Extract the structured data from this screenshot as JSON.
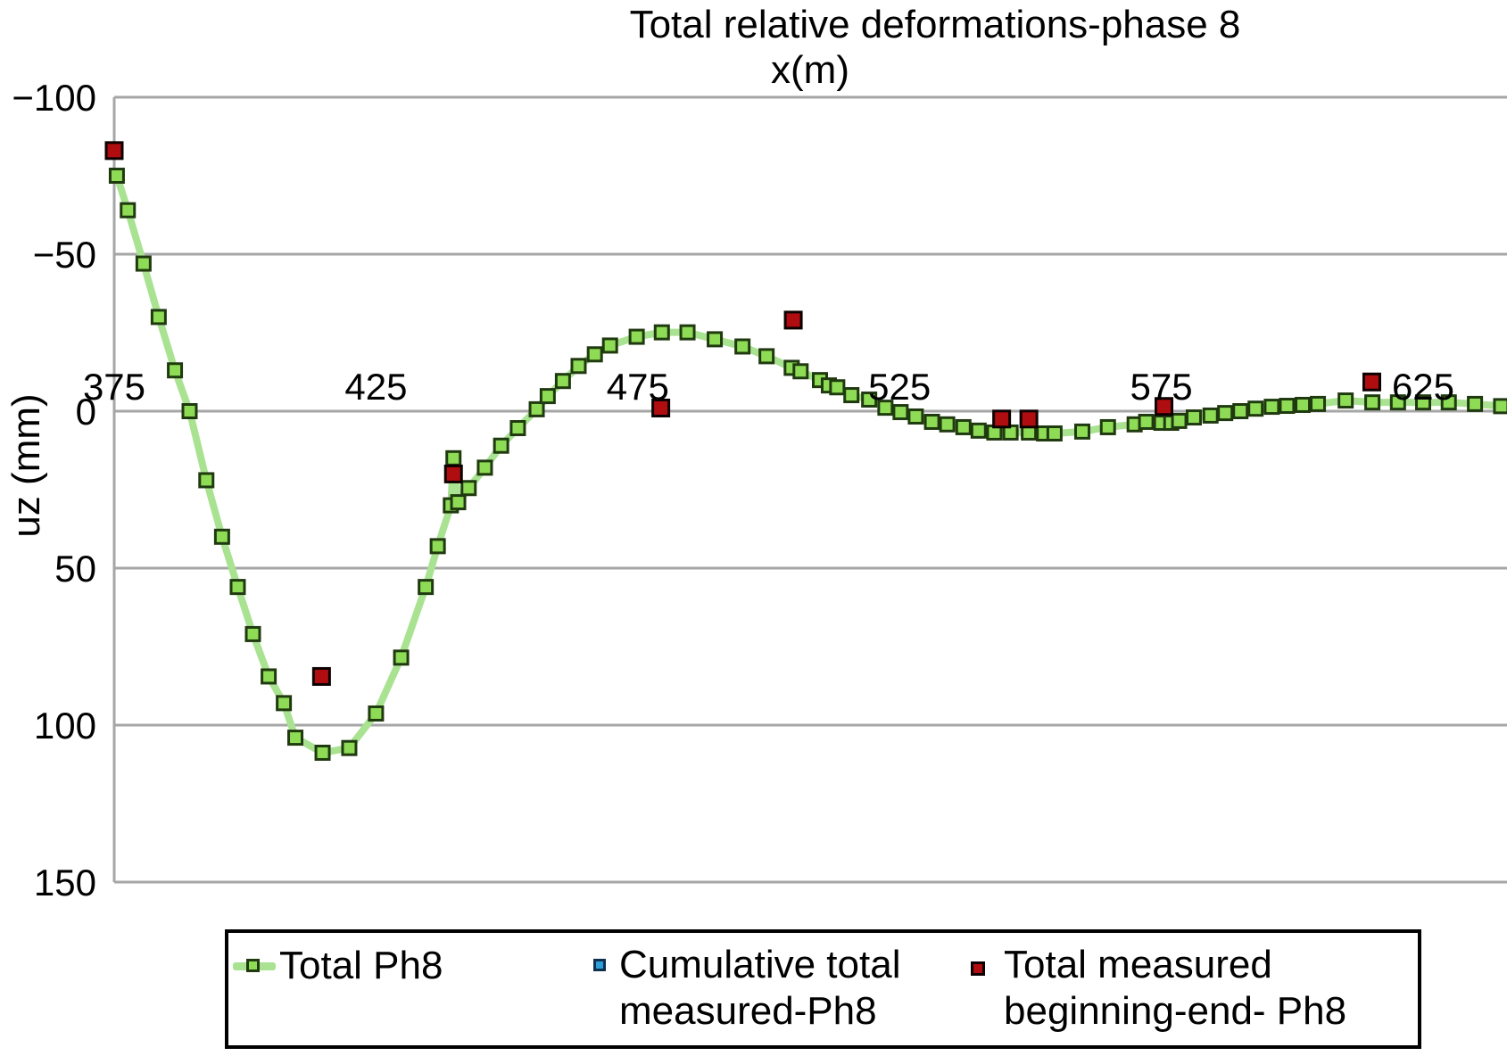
{
  "page": {
    "background": "#ffffff"
  },
  "chart_data": {
    "type": "line",
    "title": "Total relative deformations-phase 8",
    "xlabel": "x(m)",
    "ylabel": "uz (mm)",
    "x_ticks": [
      "375",
      "425",
      "475",
      "525",
      "575",
      "625"
    ],
    "x_tick_values": [
      375,
      425,
      475,
      525,
      575,
      625
    ],
    "y_ticks": [
      "−100",
      "−50",
      "0",
      "50",
      "100",
      "150"
    ],
    "y_tick_values": [
      -100,
      -50,
      0,
      50,
      100,
      150
    ],
    "y_axis_reversed": true,
    "x_range": [
      374.5,
      641.5
    ],
    "y_range": [
      -100,
      150
    ],
    "grid": "horizontal-only",
    "legend_position": "bottom",
    "colors": {
      "line_green": "#a9e391",
      "marker_green_fill": "#8edb55",
      "marker_green_edge": "#203a10",
      "marker_red_fill": "#b00d10",
      "marker_red_edge": "#0d0000",
      "marker_blue_fill": "#2d9fd8",
      "marker_blue_edge": "#0e3050",
      "grid": "#a6a6a6",
      "text": "#000000"
    },
    "series": [
      {
        "name": "Total Ph8",
        "kind": "line+marker",
        "marker": "square",
        "marker_size": 15,
        "edge_width": 3,
        "line": true,
        "color_line": "#a9e391",
        "color_fill": "#8edb55",
        "color_edge": "#203a10",
        "points": [
          [
            375.5,
            -75
          ],
          [
            377.6,
            -64
          ],
          [
            380.6,
            -47
          ],
          [
            383.5,
            -30
          ],
          [
            386.6,
            -13
          ],
          [
            389.4,
            0
          ],
          [
            392.6,
            22
          ],
          [
            395.6,
            40
          ],
          [
            398.6,
            56
          ],
          [
            401.5,
            71
          ],
          [
            404.5,
            84.5
          ],
          [
            407.4,
            93
          ],
          [
            409.6,
            104
          ],
          [
            414.8,
            108.8
          ],
          [
            419.9,
            107.3
          ],
          [
            425,
            96.3
          ],
          [
            429.8,
            78.5
          ],
          [
            434.5,
            56
          ],
          [
            436.8,
            43
          ],
          [
            439.3,
            30
          ],
          [
            439.8,
            15
          ],
          [
            440.7,
            29
          ],
          [
            442.7,
            24.5
          ],
          [
            445.8,
            18
          ],
          [
            448.9,
            11
          ],
          [
            452.1,
            5.4
          ],
          [
            455.7,
            -0.6
          ],
          [
            457.8,
            -4.8
          ],
          [
            460.7,
            -9.6
          ],
          [
            463.7,
            -14.4
          ],
          [
            466.8,
            -18.1
          ],
          [
            469.7,
            -20.9
          ],
          [
            474.8,
            -23.7
          ],
          [
            479.6,
            -25.1
          ],
          [
            484.5,
            -25.1
          ],
          [
            489.7,
            -22.9
          ],
          [
            495,
            -20.6
          ],
          [
            499.6,
            -17.5
          ],
          [
            504.4,
            -13.8
          ],
          [
            506.1,
            -12.7
          ],
          [
            509.8,
            -9.9
          ],
          [
            511.5,
            -8.2
          ],
          [
            513.1,
            -7.6
          ],
          [
            515.8,
            -5.1
          ],
          [
            519.2,
            -3.7
          ],
          [
            522.3,
            -1.1
          ],
          [
            525.2,
            0.3
          ],
          [
            528.1,
            1.7
          ],
          [
            531.2,
            3.4
          ],
          [
            534.1,
            4.2
          ],
          [
            537.2,
            5.1
          ],
          [
            540.1,
            6.2
          ],
          [
            543.1,
            6.8
          ],
          [
            546.2,
            6.8
          ],
          [
            549.7,
            6.8
          ],
          [
            552.6,
            7.1
          ],
          [
            554.6,
            7.1
          ],
          [
            559.9,
            6.5
          ],
          [
            564.8,
            5.1
          ],
          [
            569.9,
            4.2
          ],
          [
            572.1,
            3.4
          ],
          [
            575,
            3.7
          ],
          [
            576.9,
            3.7
          ],
          [
            578.4,
            3.1
          ],
          [
            581.2,
            2
          ],
          [
            584.4,
            1.4
          ],
          [
            587.2,
            0.6
          ],
          [
            590.1,
            0
          ],
          [
            593,
            -0.8
          ],
          [
            596.1,
            -1.4
          ],
          [
            599,
            -1.7
          ],
          [
            602,
            -2
          ],
          [
            604.9,
            -2.3
          ],
          [
            610.2,
            -3.4
          ],
          [
            615.3,
            -2.8
          ],
          [
            620.2,
            -2.8
          ],
          [
            625,
            -2.8
          ],
          [
            629.9,
            -2.8
          ],
          [
            634.9,
            -2.3
          ],
          [
            639.9,
            -1.6
          ]
        ]
      },
      {
        "name": "Cumulative total measured-Ph8",
        "kind": "marker",
        "marker": "square",
        "marker_size": 10,
        "edge_width": 3,
        "line": false,
        "color_fill": "#2d9fd8",
        "color_edge": "#0e3050",
        "points": []
      },
      {
        "name": "Total measured beginning-end- Ph8",
        "kind": "marker",
        "marker": "square",
        "marker_size": 18,
        "edge_width": 3,
        "line": false,
        "color_fill": "#b00d10",
        "color_edge": "#0d0000",
        "points": [
          [
            375,
            -83
          ],
          [
            414.6,
            84.5
          ],
          [
            439.8,
            20
          ],
          [
            479.4,
            -1
          ],
          [
            504.7,
            -29
          ],
          [
            544.5,
            2.5
          ],
          [
            549.7,
            2.5
          ],
          [
            575.5,
            -1.5
          ],
          [
            615.2,
            -9.3
          ]
        ]
      }
    ]
  },
  "legend": {
    "items": [
      {
        "label": "Total Ph8",
        "marker": "green-line-square"
      },
      {
        "label": "Cumulative total\nmeasured-Ph8",
        "marker": "blue-square"
      },
      {
        "label": "Total measured\nbeginning-end- Ph8",
        "marker": "red-square"
      }
    ]
  }
}
